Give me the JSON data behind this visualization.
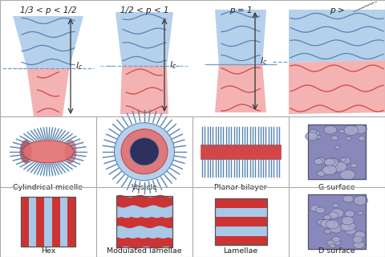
{
  "white": "#ffffff",
  "top_labels": [
    "1/3 < p < 1/2",
    "1/2 < p < 1",
    "p = 1",
    "p >"
  ],
  "bottom_top_labels": [
    "Cylindrical micelle",
    "Vesicle",
    "Planar bilayer",
    "G surface"
  ],
  "bottom_bot_labels": [
    "Hex",
    "Modulated lamellae",
    "Lamellae",
    "D surface"
  ],
  "grid_color": "#aaaaaa",
  "text_color": "#222222",
  "blue_light": "#a8c8e8",
  "blue_mid": "#7aaed4",
  "blue_dark": "#4477aa",
  "red_light": "#f0a0a0",
  "red_mid": "#e07070",
  "red_dark": "#cc3333",
  "purple_dark": "#6666aa",
  "purple_mid": "#8888bb",
  "purple_light": "#aaaacc"
}
